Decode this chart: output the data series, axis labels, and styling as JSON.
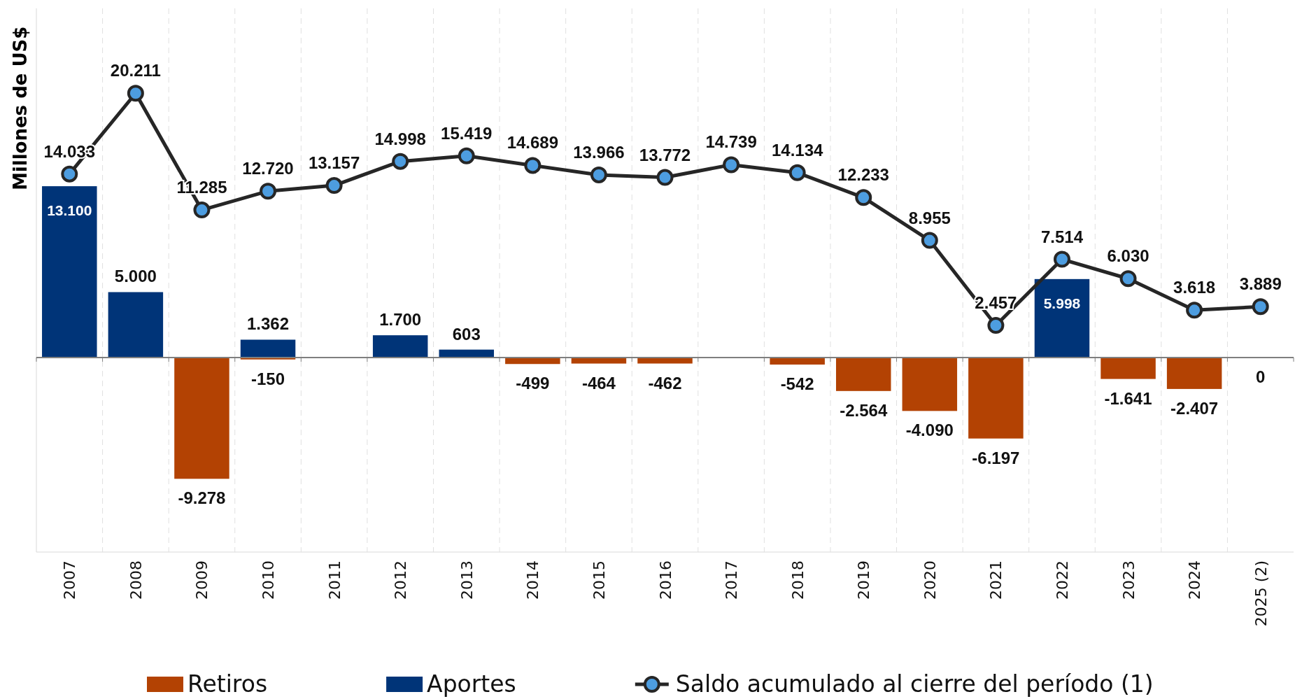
{
  "chart_data": {
    "type": "bar",
    "ylabel": "Millones de US$",
    "categories": [
      "2007",
      "2008",
      "2009",
      "2010",
      "2011",
      "2012",
      "2013",
      "2014",
      "2015",
      "2016",
      "2017",
      "2018",
      "2019",
      "2020",
      "2021",
      "2022",
      "2023",
      "2024",
      "2025 (2)"
    ],
    "series": [
      {
        "name": "Retiros",
        "color": "#b34203",
        "values": [
          null,
          null,
          -9278,
          -150,
          null,
          null,
          null,
          -499,
          -464,
          -462,
          null,
          -542,
          -2564,
          -4090,
          -6197,
          null,
          -1641,
          -2407,
          0
        ],
        "value_labels": [
          null,
          null,
          "-9.278",
          "-150",
          null,
          null,
          null,
          "-499",
          "-464",
          "-462",
          null,
          "-542",
          "-2.564",
          "-4.090",
          "-6.197",
          null,
          "-1.641",
          "-2.407",
          "0"
        ]
      },
      {
        "name": "Aportes",
        "color": "#003478",
        "values": [
          13100,
          5000,
          null,
          1362,
          null,
          1700,
          603,
          null,
          null,
          null,
          null,
          null,
          null,
          null,
          null,
          5998,
          null,
          null,
          null
        ],
        "value_labels": [
          "13.100",
          "5.000",
          null,
          "1.362",
          null,
          "1.700",
          "603",
          null,
          null,
          null,
          null,
          null,
          null,
          null,
          null,
          "5.998",
          null,
          null,
          null
        ]
      },
      {
        "name": "Saldo acumulado al cierre del período (1)",
        "type": "line",
        "color": "#262626",
        "values": [
          14033,
          20211,
          11285,
          12720,
          13157,
          14998,
          15419,
          14689,
          13966,
          13772,
          14739,
          14134,
          12233,
          8955,
          2457,
          7514,
          6030,
          3618,
          3889
        ],
        "value_labels": [
          "14.033",
          "20.211",
          "11.285",
          "12.720",
          "13.157",
          "14.998",
          "15.419",
          "14.689",
          "13.966",
          "13.772",
          "14.739",
          "14.134",
          "12.233",
          "8.955",
          "2.457",
          "7.514",
          "6.030",
          "3.618",
          "3.889"
        ]
      }
    ],
    "grid": "x",
    "legend": "bottom",
    "marker": "circle",
    "line_style": "solid"
  }
}
